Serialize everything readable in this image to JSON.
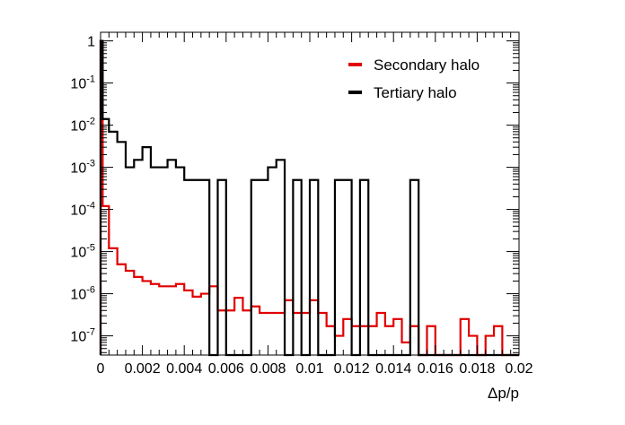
{
  "chart_data": {
    "type": "line",
    "style": "step-histogram",
    "xlabel": "Δp/p",
    "ylabel": "",
    "xlim": [
      0,
      0.02
    ],
    "ylim": [
      3.5e-08,
      1.6
    ],
    "yscale": "log",
    "grid": false,
    "legend_position": "top-right",
    "x_ticks": [
      {
        "value": 0,
        "label": "0"
      },
      {
        "value": 0.002,
        "label": "0.002"
      },
      {
        "value": 0.004,
        "label": "0.004"
      },
      {
        "value": 0.006,
        "label": "0.006"
      },
      {
        "value": 0.008,
        "label": "0.008"
      },
      {
        "value": 0.01,
        "label": "0.01"
      },
      {
        "value": 0.012,
        "label": "0.012"
      },
      {
        "value": 0.014,
        "label": "0.014"
      },
      {
        "value": 0.016,
        "label": "0.016"
      },
      {
        "value": 0.018,
        "label": "0.018"
      },
      {
        "value": 0.02,
        "label": "0.02"
      }
    ],
    "y_ticks": [
      {
        "value": 1,
        "base": "1",
        "exp": ""
      },
      {
        "value": 0.1,
        "base": "10",
        "exp": "-1"
      },
      {
        "value": 0.01,
        "base": "10",
        "exp": "-2"
      },
      {
        "value": 0.001,
        "base": "10",
        "exp": "-3"
      },
      {
        "value": 0.0001,
        "base": "10",
        "exp": "-4"
      },
      {
        "value": 1e-05,
        "base": "10",
        "exp": "-5"
      },
      {
        "value": 1e-06,
        "base": "10",
        "exp": "-6"
      },
      {
        "value": 1e-07,
        "base": "10",
        "exp": "-7"
      }
    ],
    "bin_edges": [
      0,
      0.0004,
      0.0008,
      0.0012,
      0.0016,
      0.002,
      0.0024,
      0.0028,
      0.0032,
      0.0036,
      0.004,
      0.0044,
      0.0048,
      0.0052,
      0.0056,
      0.006,
      0.0064,
      0.0068,
      0.0072,
      0.0076,
      0.008,
      0.0084,
      0.0088,
      0.0092,
      0.0096,
      0.01,
      0.0104,
      0.0108,
      0.0112,
      0.0116,
      0.012,
      0.0124,
      0.0128,
      0.0132,
      0.0136,
      0.014,
      0.0144,
      0.0148,
      0.0152,
      0.0156,
      0.016,
      0.0164,
      0.0168,
      0.0172,
      0.0176,
      0.018,
      0.0184,
      0.0188,
      0.0192,
      0.0196,
      0.02
    ],
    "series": [
      {
        "name": "Secondary halo",
        "color": "#e10000",
        "values": [
          0.00012,
          1.2e-05,
          5e-06,
          3.5e-06,
          2.5e-06,
          2e-06,
          1.7e-06,
          1.5e-06,
          1.5e-06,
          1.7e-06,
          1.2e-06,
          8.5e-07,
          1e-06,
          1.5e-06,
          4e-07,
          4e-07,
          8e-07,
          4e-07,
          5e-07,
          3.5e-07,
          3.5e-07,
          3.5e-07,
          7e-07,
          3.5e-07,
          3.5e-07,
          7e-07,
          3.5e-07,
          1.7e-07,
          1e-07,
          2.5e-07,
          1.7e-07,
          1.7e-07,
          1.7e-07,
          3.5e-07,
          1.7e-07,
          2.5e-07,
          7e-08,
          1.7e-07,
          0,
          1.7e-07,
          0,
          0,
          0,
          2.5e-07,
          1e-07,
          0,
          1e-07,
          1.7e-07,
          0,
          0
        ],
        "first_bin": {
          "x0": 0,
          "x1": 0.0001,
          "value": 1.0
        }
      },
      {
        "name": "Tertiary halo",
        "color": "#000000",
        "values": [
          0.014,
          0.007,
          0.004,
          0.001,
          0.0015,
          0.003,
          0.001,
          0.001,
          0.0015,
          0.001,
          0.0005,
          0.0005,
          0.0005,
          0,
          0.0005,
          0,
          0,
          0,
          0.0005,
          0.0005,
          0.001,
          0.0015,
          0,
          0.0005,
          0,
          0.0005,
          0,
          0,
          0.0005,
          0.0005,
          0,
          0.0005,
          0,
          0,
          0,
          0,
          0,
          0.0005,
          0,
          0,
          0,
          0,
          0,
          0,
          0,
          0,
          0,
          0,
          0,
          0
        ],
        "first_bin": {
          "x0": 0,
          "x1": 0.0001,
          "value": 1.0
        }
      }
    ]
  }
}
